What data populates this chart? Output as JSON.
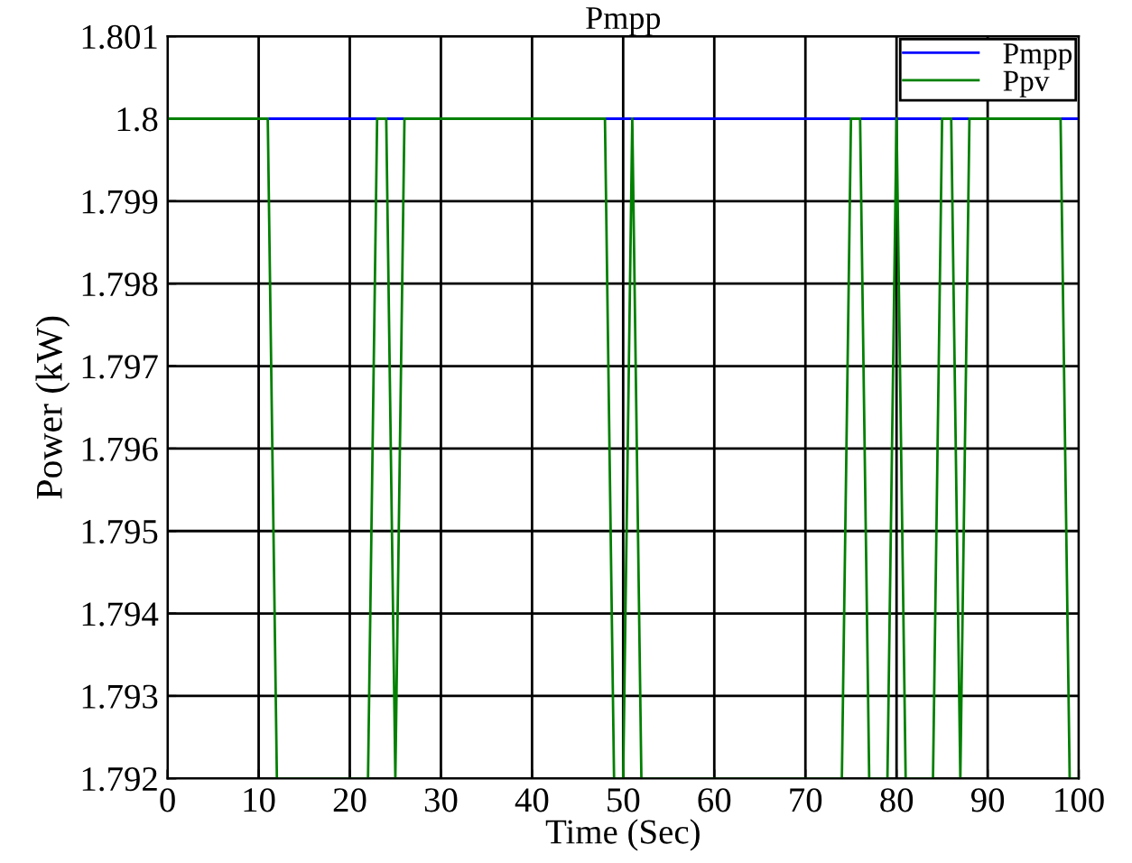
{
  "chart_data": {
    "type": "line",
    "title": "Pmpp",
    "xlabel": "Time (Sec)",
    "ylabel": "Power (kW)",
    "xlim": [
      0,
      100
    ],
    "xticks": [
      0,
      10,
      20,
      30,
      40,
      50,
      60,
      70,
      80,
      90,
      100
    ],
    "ylim": [
      1.792,
      1.801
    ],
    "yticks": [
      1.792,
      1.793,
      1.794,
      1.795,
      1.796,
      1.797,
      1.798,
      1.799,
      {
        "value": 1.8,
        "label": "1.8"
      },
      1.801
    ],
    "grid": true,
    "legend": "top right",
    "marker": "none",
    "line_style": "solid",
    "series": [
      {
        "name": "Pmpp",
        "color": "#0000ff",
        "x": [
          0,
          100
        ],
        "values": [
          1.8,
          1.8
        ]
      },
      {
        "name": "Ppv",
        "color": "#008000",
        "x": [
          0,
          11,
          12,
          22,
          23,
          24,
          25,
          26,
          48,
          49,
          50,
          51,
          52,
          74,
          75,
          76,
          77,
          79,
          80,
          81,
          84,
          85,
          86,
          87,
          88,
          98,
          99,
          100
        ],
        "values": [
          1.8,
          1.8,
          1.792,
          1.792,
          1.8,
          1.8,
          1.792,
          1.8,
          1.8,
          1.792,
          1.792,
          1.8,
          1.792,
          1.792,
          1.8,
          1.8,
          1.792,
          1.792,
          1.8,
          1.792,
          1.792,
          1.8,
          1.8,
          1.792,
          1.8,
          1.8,
          1.792,
          1.792
        ]
      }
    ]
  }
}
